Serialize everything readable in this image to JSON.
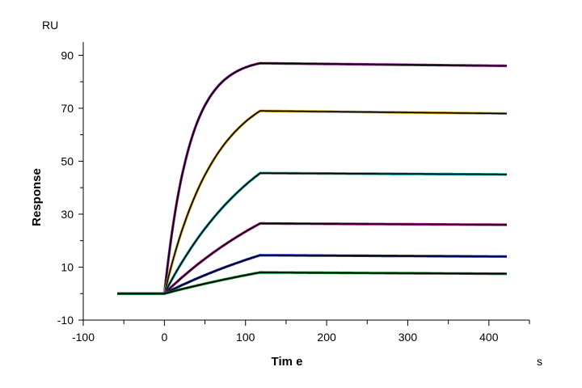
{
  "chart_data": {
    "type": "line",
    "title": "",
    "xlabel": "Tim e",
    "ylabel": "Response",
    "x_unit": "s",
    "y_unit": "RU",
    "xlim": [
      -100,
      450
    ],
    "ylim": [
      -10,
      95
    ],
    "x_ticks": [
      -100,
      0,
      100,
      200,
      300,
      400
    ],
    "y_ticks": [
      -10,
      10,
      30,
      50,
      70,
      90
    ],
    "grid": false,
    "legend": "none",
    "curve_model": {
      "baseline_start": -58,
      "association_start": 0,
      "dissociation_start": 118,
      "end": 422
    },
    "series": [
      {
        "color": "#8b1a8b",
        "fit_color": "#000000",
        "plateau": 87,
        "end_value": 86,
        "rate": 0.032
      },
      {
        "color": "#c8a000",
        "fit_color": "#000000",
        "plateau": 69,
        "end_value": 68,
        "rate": 0.016
      },
      {
        "color": "#00a0a0",
        "fit_color": "#000000",
        "plateau": 45.5,
        "end_value": 45,
        "rate": 0.008
      },
      {
        "color": "#b0108c",
        "fit_color": "#000000",
        "plateau": 26.5,
        "end_value": 26,
        "rate": 0.005
      },
      {
        "color": "#2030c0",
        "fit_color": "#000000",
        "plateau": 14.5,
        "end_value": 14,
        "rate": 0.004
      },
      {
        "color": "#008020",
        "fit_color": "#000000",
        "plateau": 8,
        "end_value": 7.5,
        "rate": 0.003
      }
    ]
  }
}
